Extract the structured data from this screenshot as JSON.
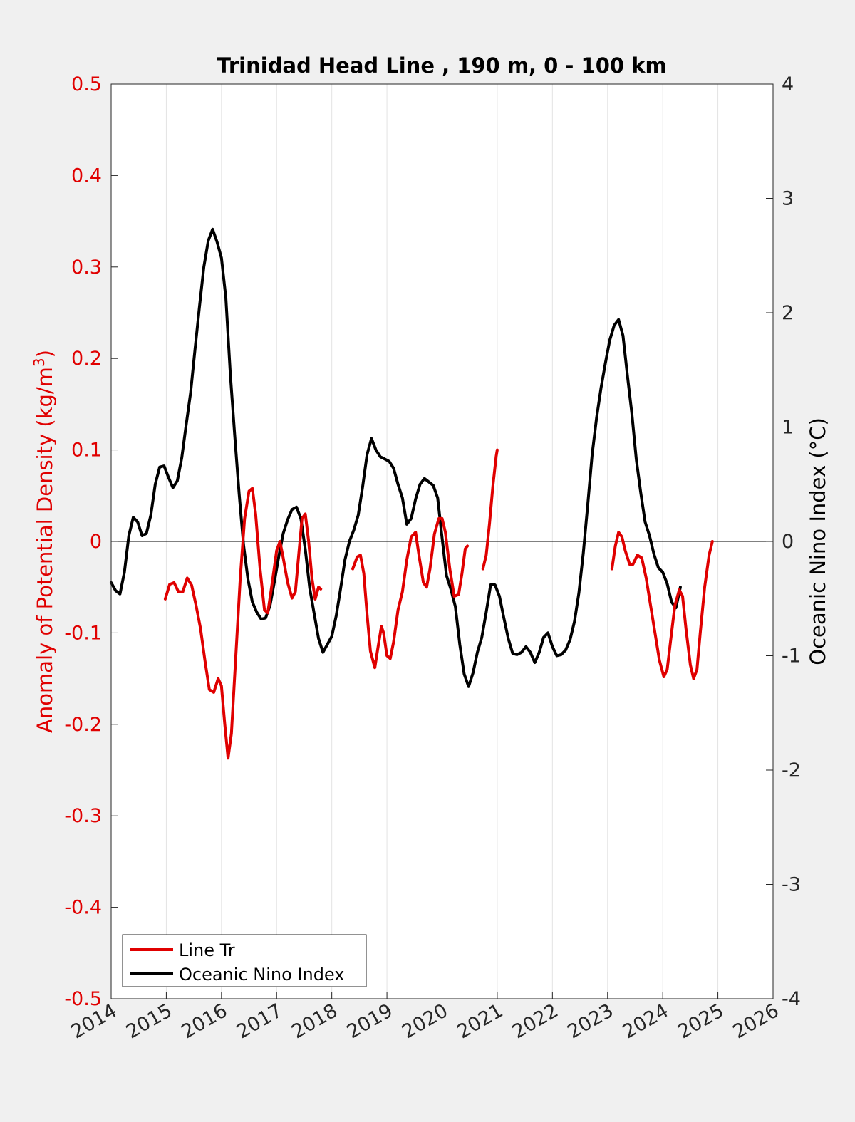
{
  "chart_data": {
    "type": "line",
    "title": "Trinidad Head Line , 190 m, 0 - 100 km",
    "ylabel_left": "Anomaly of Potential Density (kg/m",
    "ylabel_left_sup": "3",
    "ylabel_left_close": ")",
    "ylabel_right": "Oceanic Nino Index (°C)",
    "xlim": [
      2014,
      2026
    ],
    "ylim_left": [
      -0.5,
      0.5
    ],
    "ylim_right": [
      -4,
      4
    ],
    "grid": "vertical",
    "legend_position": "bottom-left",
    "x_ticks": [
      "2014",
      "2015",
      "2016",
      "2017",
      "2018",
      "2019",
      "2020",
      "2021",
      "2022",
      "2023",
      "2024",
      "2025",
      "2026"
    ],
    "y_left_ticks": [
      "0.5",
      "0.4",
      "0.3",
      "0.2",
      "0.1",
      "0",
      "-0.1",
      "-0.2",
      "-0.3",
      "-0.4",
      "-0.5"
    ],
    "y_right_ticks": [
      "4",
      "3",
      "2",
      "1",
      "0",
      "-1",
      "-2",
      "-3",
      "-4"
    ],
    "colors": {
      "line_tr": "#e00000",
      "oni": "#000000"
    },
    "series": [
      {
        "name": "Line Tr",
        "axis": "left",
        "segments": [
          [
            [
              2014.98,
              -0.063
            ],
            [
              2015.06,
              -0.047
            ],
            [
              2015.14,
              -0.045
            ],
            [
              2015.22,
              -0.055
            ],
            [
              2015.3,
              -0.055
            ],
            [
              2015.38,
              -0.04
            ],
            [
              2015.46,
              -0.048
            ],
            [
              2015.54,
              -0.07
            ],
            [
              2015.62,
              -0.095
            ],
            [
              2015.7,
              -0.13
            ],
            [
              2015.78,
              -0.162
            ],
            [
              2015.86,
              -0.165
            ],
            [
              2015.94,
              -0.15
            ],
            [
              2016.0,
              -0.158
            ],
            [
              2016.06,
              -0.2
            ],
            [
              2016.12,
              -0.237
            ],
            [
              2016.18,
              -0.21
            ],
            [
              2016.26,
              -0.125
            ],
            [
              2016.34,
              -0.04
            ],
            [
              2016.42,
              0.025
            ],
            [
              2016.5,
              0.055
            ],
            [
              2016.56,
              0.058
            ],
            [
              2016.62,
              0.03
            ],
            [
              2016.7,
              -0.03
            ],
            [
              2016.78,
              -0.075
            ],
            [
              2016.84,
              -0.078
            ],
            [
              2016.92,
              -0.045
            ],
            [
              2017.0,
              -0.01
            ],
            [
              2017.06,
              0.0
            ],
            [
              2017.12,
              -0.018
            ],
            [
              2017.2,
              -0.045
            ],
            [
              2017.28,
              -0.062
            ],
            [
              2017.34,
              -0.055
            ],
            [
              2017.4,
              -0.015
            ],
            [
              2017.46,
              0.025
            ],
            [
              2017.52,
              0.03
            ],
            [
              2017.58,
              0.0
            ],
            [
              2017.64,
              -0.04
            ],
            [
              2017.7,
              -0.063
            ],
            [
              2017.76,
              -0.05
            ],
            [
              2017.8,
              -0.052
            ]
          ],
          [
            [
              2018.38,
              -0.03
            ],
            [
              2018.46,
              -0.017
            ],
            [
              2018.52,
              -0.015
            ],
            [
              2018.58,
              -0.035
            ],
            [
              2018.64,
              -0.08
            ],
            [
              2018.7,
              -0.12
            ],
            [
              2018.78,
              -0.138
            ],
            [
              2018.84,
              -0.115
            ],
            [
              2018.9,
              -0.093
            ],
            [
              2018.94,
              -0.1
            ],
            [
              2019.0,
              -0.125
            ],
            [
              2019.06,
              -0.128
            ],
            [
              2019.12,
              -0.11
            ],
            [
              2019.2,
              -0.075
            ],
            [
              2019.28,
              -0.055
            ],
            [
              2019.36,
              -0.02
            ],
            [
              2019.44,
              0.005
            ],
            [
              2019.52,
              0.01
            ],
            [
              2019.58,
              -0.015
            ],
            [
              2019.66,
              -0.045
            ],
            [
              2019.72,
              -0.05
            ],
            [
              2019.78,
              -0.03
            ],
            [
              2019.86,
              0.008
            ],
            [
              2019.94,
              0.025
            ],
            [
              2020.0,
              0.025
            ],
            [
              2020.06,
              0.01
            ],
            [
              2020.14,
              -0.03
            ],
            [
              2020.22,
              -0.06
            ],
            [
              2020.3,
              -0.058
            ],
            [
              2020.36,
              -0.035
            ],
            [
              2020.42,
              -0.008
            ],
            [
              2020.46,
              -0.005
            ]
          ],
          [
            [
              2020.74,
              -0.03
            ],
            [
              2020.8,
              -0.015
            ],
            [
              2020.86,
              0.02
            ],
            [
              2020.92,
              0.06
            ],
            [
              2020.98,
              0.093
            ],
            [
              2021.0,
              0.1
            ]
          ],
          [
            [
              2023.08,
              -0.03
            ],
            [
              2023.14,
              -0.005
            ],
            [
              2023.2,
              0.01
            ],
            [
              2023.26,
              0.005
            ],
            [
              2023.32,
              -0.01
            ],
            [
              2023.4,
              -0.025
            ],
            [
              2023.46,
              -0.025
            ],
            [
              2023.54,
              -0.015
            ],
            [
              2023.62,
              -0.018
            ],
            [
              2023.7,
              -0.04
            ],
            [
              2023.78,
              -0.07
            ],
            [
              2023.86,
              -0.1
            ],
            [
              2023.94,
              -0.13
            ],
            [
              2024.02,
              -0.148
            ],
            [
              2024.08,
              -0.14
            ],
            [
              2024.14,
              -0.11
            ],
            [
              2024.22,
              -0.07
            ],
            [
              2024.3,
              -0.053
            ],
            [
              2024.36,
              -0.06
            ],
            [
              2024.42,
              -0.095
            ],
            [
              2024.5,
              -0.135
            ],
            [
              2024.56,
              -0.15
            ],
            [
              2024.62,
              -0.14
            ],
            [
              2024.68,
              -0.1
            ],
            [
              2024.76,
              -0.05
            ],
            [
              2024.84,
              -0.015
            ],
            [
              2024.9,
              0.0
            ]
          ]
        ]
      },
      {
        "name": "Oceanic Nino Index",
        "axis": "right",
        "segments": [
          [
            [
              2014.0,
              -0.36
            ],
            [
              2014.08,
              -0.43
            ],
            [
              2014.16,
              -0.46
            ],
            [
              2014.24,
              -0.27
            ],
            [
              2014.32,
              0.05
            ],
            [
              2014.4,
              0.21
            ],
            [
              2014.48,
              0.17
            ],
            [
              2014.56,
              0.05
            ],
            [
              2014.64,
              0.07
            ],
            [
              2014.72,
              0.23
            ],
            [
              2014.8,
              0.5
            ],
            [
              2014.88,
              0.65
            ],
            [
              2014.96,
              0.66
            ],
            [
              2015.04,
              0.56
            ],
            [
              2015.12,
              0.47
            ],
            [
              2015.2,
              0.53
            ],
            [
              2015.28,
              0.73
            ],
            [
              2015.36,
              1.02
            ],
            [
              2015.44,
              1.3
            ],
            [
              2015.52,
              1.68
            ],
            [
              2015.6,
              2.05
            ],
            [
              2015.68,
              2.4
            ],
            [
              2015.76,
              2.63
            ],
            [
              2015.84,
              2.73
            ],
            [
              2015.92,
              2.62
            ],
            [
              2016.0,
              2.48
            ],
            [
              2016.08,
              2.13
            ],
            [
              2016.16,
              1.47
            ],
            [
              2016.24,
              0.93
            ],
            [
              2016.32,
              0.42
            ],
            [
              2016.4,
              -0.03
            ],
            [
              2016.48,
              -0.33
            ],
            [
              2016.56,
              -0.53
            ],
            [
              2016.64,
              -0.62
            ],
            [
              2016.72,
              -0.68
            ],
            [
              2016.8,
              -0.67
            ],
            [
              2016.88,
              -0.56
            ],
            [
              2016.96,
              -0.35
            ],
            [
              2017.04,
              -0.13
            ],
            [
              2017.12,
              0.07
            ],
            [
              2017.2,
              0.19
            ],
            [
              2017.28,
              0.28
            ],
            [
              2017.36,
              0.3
            ],
            [
              2017.44,
              0.2
            ],
            [
              2017.52,
              -0.07
            ],
            [
              2017.6,
              -0.41
            ],
            [
              2017.68,
              -0.63
            ],
            [
              2017.76,
              -0.85
            ],
            [
              2017.84,
              -0.97
            ],
            [
              2017.92,
              -0.9
            ],
            [
              2018.0,
              -0.83
            ],
            [
              2018.08,
              -0.65
            ],
            [
              2018.16,
              -0.41
            ],
            [
              2018.24,
              -0.16
            ],
            [
              2018.32,
              0.0
            ],
            [
              2018.4,
              0.1
            ],
            [
              2018.48,
              0.23
            ],
            [
              2018.56,
              0.48
            ],
            [
              2018.64,
              0.76
            ],
            [
              2018.72,
              0.9
            ],
            [
              2018.8,
              0.8
            ],
            [
              2018.88,
              0.74
            ],
            [
              2018.96,
              0.72
            ],
            [
              2019.04,
              0.7
            ],
            [
              2019.12,
              0.64
            ],
            [
              2019.2,
              0.5
            ],
            [
              2019.28,
              0.38
            ],
            [
              2019.36,
              0.15
            ],
            [
              2019.44,
              0.2
            ],
            [
              2019.52,
              0.37
            ],
            [
              2019.6,
              0.5
            ],
            [
              2019.68,
              0.55
            ],
            [
              2019.76,
              0.52
            ],
            [
              2019.84,
              0.49
            ],
            [
              2019.92,
              0.38
            ],
            [
              2020.0,
              0.03
            ],
            [
              2020.08,
              -0.3
            ],
            [
              2020.16,
              -0.42
            ],
            [
              2020.24,
              -0.57
            ],
            [
              2020.32,
              -0.9
            ],
            [
              2020.4,
              -1.16
            ],
            [
              2020.48,
              -1.27
            ],
            [
              2020.56,
              -1.15
            ],
            [
              2020.64,
              -0.97
            ],
            [
              2020.72,
              -0.84
            ],
            [
              2020.8,
              -0.62
            ],
            [
              2020.88,
              -0.38
            ],
            [
              2020.96,
              -0.38
            ],
            [
              2021.04,
              -0.48
            ],
            [
              2021.12,
              -0.67
            ],
            [
              2021.2,
              -0.85
            ],
            [
              2021.28,
              -0.98
            ],
            [
              2021.36,
              -0.99
            ],
            [
              2021.44,
              -0.97
            ],
            [
              2021.52,
              -0.92
            ],
            [
              2021.6,
              -0.97
            ],
            [
              2021.68,
              -1.06
            ],
            [
              2021.76,
              -0.97
            ],
            [
              2021.84,
              -0.84
            ],
            [
              2021.92,
              -0.8
            ],
            [
              2022.0,
              -0.92
            ],
            [
              2022.08,
              -1.0
            ],
            [
              2022.16,
              -0.99
            ],
            [
              2022.24,
              -0.95
            ],
            [
              2022.32,
              -0.86
            ],
            [
              2022.4,
              -0.7
            ],
            [
              2022.48,
              -0.45
            ],
            [
              2022.56,
              -0.1
            ],
            [
              2022.64,
              0.32
            ],
            [
              2022.72,
              0.76
            ],
            [
              2022.8,
              1.08
            ],
            [
              2022.88,
              1.34
            ],
            [
              2022.96,
              1.56
            ],
            [
              2023.04,
              1.76
            ],
            [
              2023.12,
              1.89
            ],
            [
              2023.2,
              1.94
            ],
            [
              2023.28,
              1.8
            ],
            [
              2023.36,
              1.45
            ],
            [
              2023.44,
              1.12
            ],
            [
              2023.52,
              0.72
            ],
            [
              2023.6,
              0.43
            ],
            [
              2023.68,
              0.17
            ],
            [
              2023.76,
              0.05
            ],
            [
              2023.84,
              -0.11
            ],
            [
              2023.92,
              -0.23
            ],
            [
              2024.0,
              -0.27
            ],
            [
              2024.08,
              -0.37
            ],
            [
              2024.16,
              -0.53
            ],
            [
              2024.24,
              -0.58
            ],
            [
              2024.32,
              -0.4
            ]
          ]
        ]
      }
    ]
  },
  "legend": [
    {
      "label": "Line Tr",
      "color": "#e00000"
    },
    {
      "label": "Oceanic Nino Index",
      "color": "#000000"
    }
  ]
}
